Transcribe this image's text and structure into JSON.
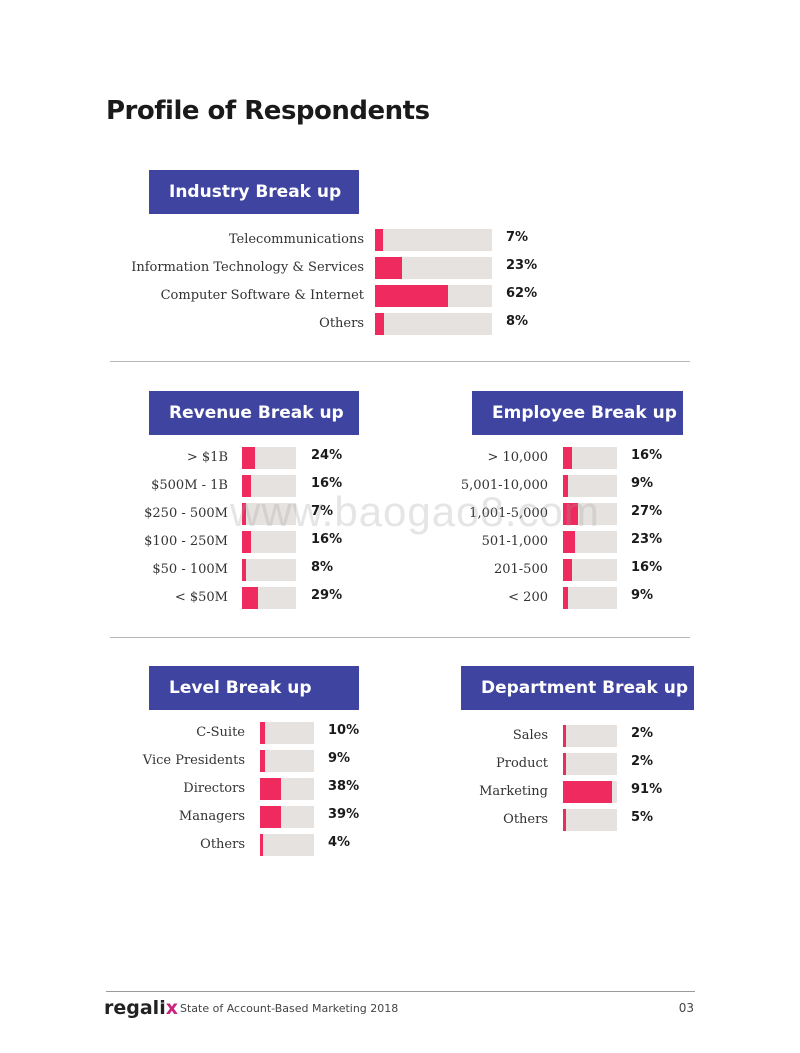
{
  "page": {
    "title": "Profile of Respondents",
    "watermark": "www.baogao8.com",
    "footer": {
      "logo_main": "regali",
      "logo_accent": "x",
      "report": "State of Account-Based Marketing 2018",
      "page_number": "03"
    }
  },
  "colors": {
    "header_bg": "#3f44a0",
    "bar_fill": "#ee2a5f",
    "bar_track": "#e6e2df"
  },
  "sections": [
    {
      "title": "Industry Break up",
      "rows": [
        {
          "label": "Telecommunications",
          "value": 7,
          "display": "7%"
        },
        {
          "label": "Information Technology & Services",
          "value": 23,
          "display": "23%"
        },
        {
          "label": "Computer Software & Internet",
          "value": 62,
          "display": "62%"
        },
        {
          "label": "Others",
          "value": 8,
          "display": "8%"
        }
      ]
    },
    {
      "title": "Revenue Break up",
      "rows": [
        {
          "label": "> $1B",
          "value": 24,
          "display": "24%"
        },
        {
          "label": "$500M - 1B",
          "value": 16,
          "display": "16%"
        },
        {
          "label": "$250 - 500M",
          "value": 7,
          "display": "7%"
        },
        {
          "label": "$100 - 250M",
          "value": 16,
          "display": "16%"
        },
        {
          "label": "$50 - 100M",
          "value": 8,
          "display": "8%"
        },
        {
          "label": "< $50M",
          "value": 29,
          "display": "29%"
        }
      ]
    },
    {
      "title": "Employee Break up",
      "rows": [
        {
          "label": "> 10,000",
          "value": 16,
          "display": "16%"
        },
        {
          "label": "5,001-10,000",
          "value": 9,
          "display": "9%"
        },
        {
          "label": "1,001-5,000",
          "value": 27,
          "display": "27%"
        },
        {
          "label": "501-1,000",
          "value": 23,
          "display": "23%"
        },
        {
          "label": "201-500",
          "value": 16,
          "display": "16%"
        },
        {
          "label": "< 200",
          "value": 9,
          "display": "9%"
        }
      ]
    },
    {
      "title": "Level Break up",
      "rows": [
        {
          "label": "C-Suite",
          "value": 10,
          "display": "10%"
        },
        {
          "label": "Vice Presidents",
          "value": 9,
          "display": "9%"
        },
        {
          "label": "Directors",
          "value": 38,
          "display": "38%"
        },
        {
          "label": "Managers",
          "value": 39,
          "display": "39%"
        },
        {
          "label": "Others",
          "value": 4,
          "display": "4%"
        }
      ]
    },
    {
      "title": "Department Break up",
      "rows": [
        {
          "label": "Sales",
          "value": 2,
          "display": "2%"
        },
        {
          "label": "Product",
          "value": 2,
          "display": "2%"
        },
        {
          "label": "Marketing",
          "value": 91,
          "display": "91%"
        },
        {
          "label": "Others",
          "value": 5,
          "display": "5%"
        }
      ]
    }
  ]
}
